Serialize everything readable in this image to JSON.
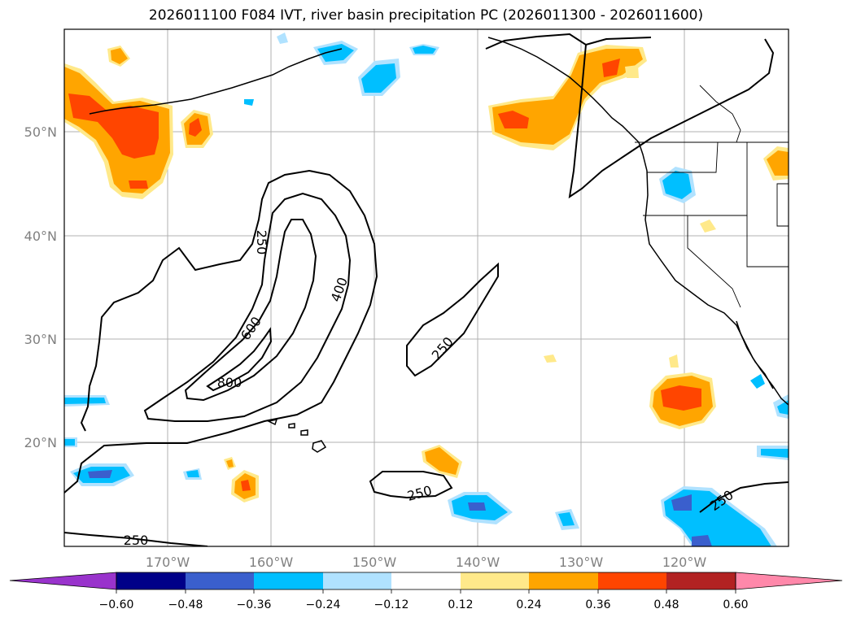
{
  "title": "2026011100 F084 IVT, river basin precipitation PC (2026011300 - 2026011600)",
  "map": {
    "lat_labels": [
      "50°N",
      "40°N",
      "30°N",
      "20°N"
    ],
    "lon_labels": [
      "170°W",
      "160°W",
      "150°W",
      "140°W",
      "130°W",
      "120°W"
    ],
    "ivt_contour_labels": [
      "250",
      "400",
      "600",
      "800",
      "250",
      "250",
      "250",
      "250"
    ]
  },
  "colorbar": {
    "ticks": [
      "−0.60",
      "−0.48",
      "−0.36",
      "−0.24",
      "−0.12",
      "0.12",
      "0.24",
      "0.36",
      "0.48",
      "0.60"
    ],
    "colors": {
      "under": "#9933cc",
      "neg_060": "#000088",
      "neg_048": "#3a5fcd",
      "neg_036": "#00bfff",
      "neg_024": "#b0e2ff",
      "neutral": "#ffffff",
      "pos_012": "#ffe98a",
      "pos_024": "#ffa500",
      "pos_036": "#ff4500",
      "pos_048": "#b22222",
      "over": "#ff88aa"
    }
  }
}
